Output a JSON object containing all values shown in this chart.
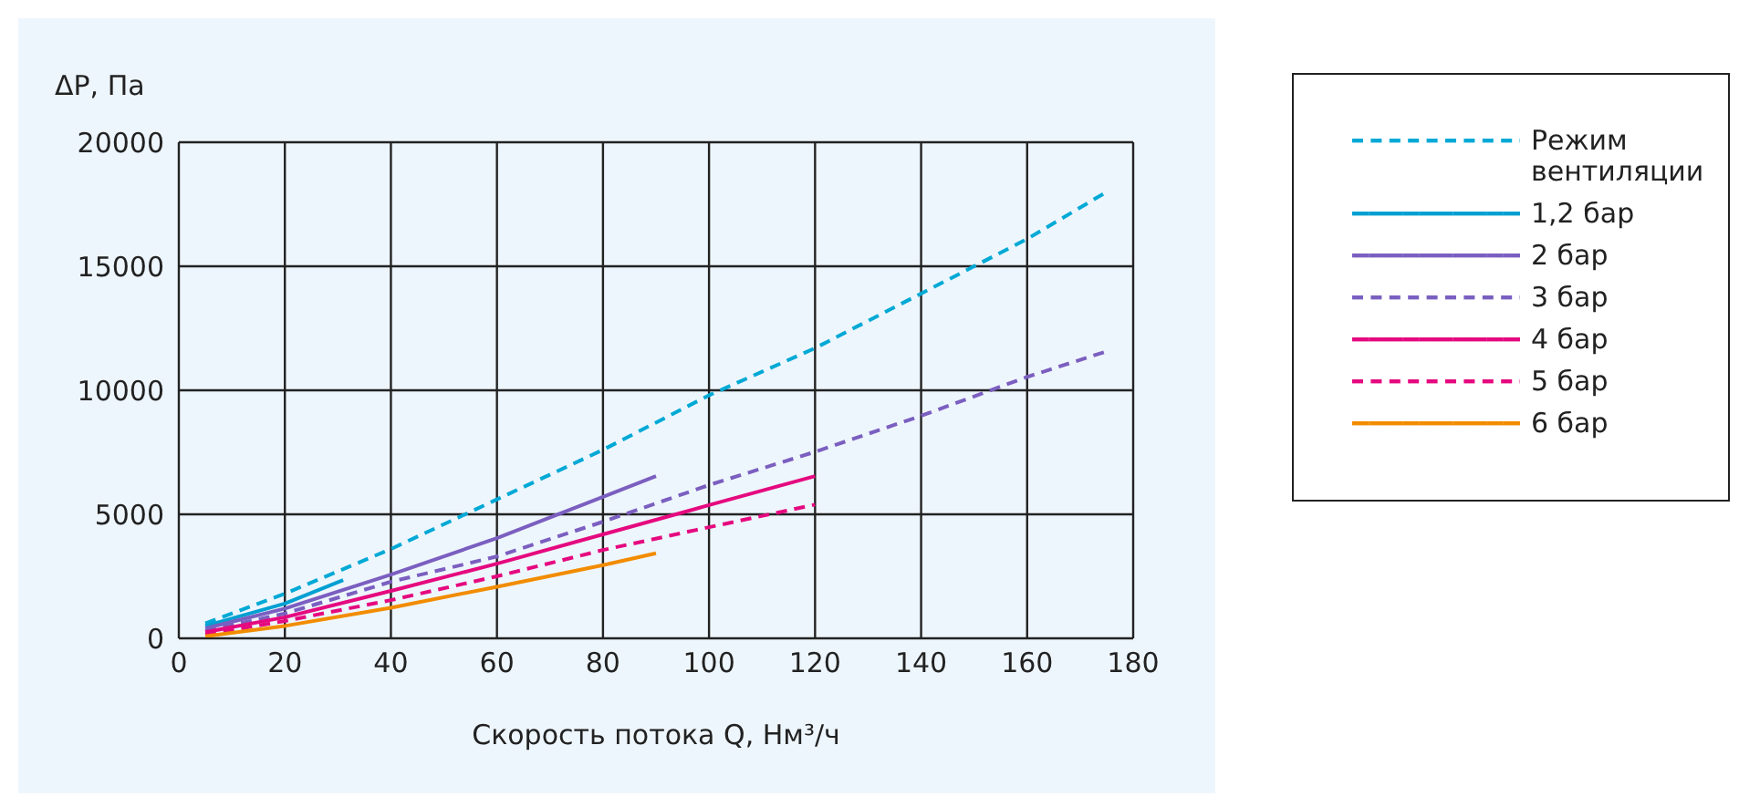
{
  "chart_data": {
    "type": "line",
    "xlabel": "Скорость потока Q, Нм³/ч",
    "ylabel": "ΔP, Па",
    "xlim": [
      0,
      180
    ],
    "xticks": [
      0,
      20,
      40,
      60,
      80,
      100,
      120,
      140,
      160,
      180
    ],
    "ylim": [
      0,
      20000
    ],
    "yticks": [
      0,
      5000,
      10000,
      15000,
      20000
    ],
    "grid": true,
    "legend": "right",
    "marker": "none",
    "series": [
      {
        "name": "Режим вентиляции",
        "color": "#00a9d6",
        "line_style": "dashed",
        "x": [
          5,
          20,
          40,
          60,
          80,
          100,
          120,
          140,
          160,
          175
        ],
        "values": [
          600,
          1800,
          3600,
          5600,
          7600,
          9800,
          11700,
          13900,
          16100,
          18000
        ]
      },
      {
        "name": "1,2 бар",
        "color": "#00a0d2",
        "line_style": "solid",
        "x": [
          5,
          20,
          31
        ],
        "values": [
          500,
          1400,
          2350
        ]
      },
      {
        "name": "2 бар",
        "color": "#7b5fc0",
        "line_style": "solid",
        "x": [
          5,
          20,
          40,
          60,
          80,
          90
        ],
        "values": [
          400,
          1200,
          2570,
          4040,
          5700,
          6540
        ]
      },
      {
        "name": "3 бар",
        "color": "#7b5fc0",
        "line_style": "dashed",
        "x": [
          5,
          20,
          40,
          60,
          80,
          100,
          120,
          140,
          160,
          175
        ],
        "values": [
          300,
          1000,
          2280,
          3300,
          4700,
          6180,
          7520,
          8970,
          10540,
          11570
        ]
      },
      {
        "name": "4 бар",
        "color": "#e5097f",
        "line_style": "solid",
        "x": [
          5,
          20,
          40,
          60,
          80,
          100,
          120
        ],
        "values": [
          250,
          850,
          1910,
          3010,
          4190,
          5370,
          6540
        ]
      },
      {
        "name": "5 бар",
        "color": "#e5097f",
        "line_style": "dashed",
        "x": [
          5,
          20,
          40,
          60,
          80,
          100,
          120
        ],
        "values": [
          150,
          700,
          1540,
          2500,
          3560,
          4480,
          5390
        ]
      },
      {
        "name": "6 бар",
        "color": "#f28c00",
        "line_style": "solid",
        "x": [
          5,
          20,
          40,
          60,
          80,
          90
        ],
        "values": [
          80,
          500,
          1230,
          2080,
          2950,
          3430
        ]
      }
    ]
  }
}
